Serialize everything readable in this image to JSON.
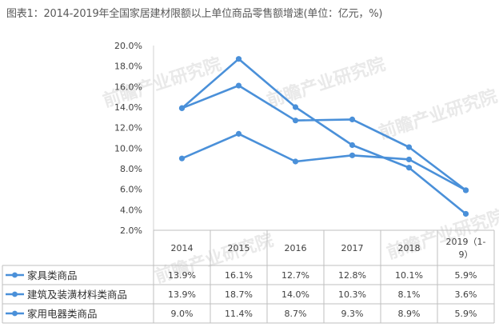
{
  "title": "图表1：2014-2019年全国家居建材限额以上单位商品零售额增速(单位：亿元，%)",
  "watermark": "前瞻产业研究院",
  "chart_data": {
    "type": "line",
    "title": "图表1：2014-2019年全国家居建材限额以上单位商品零售额增速(单位：亿元，%)",
    "categories": [
      "2014",
      "2015",
      "2016",
      "2017",
      "2018",
      "2019（1-9）"
    ],
    "category_lines": [
      [
        "2014"
      ],
      [
        "2015"
      ],
      [
        "2016"
      ],
      [
        "2017"
      ],
      [
        "2018"
      ],
      [
        "2019（1-",
        "9）"
      ]
    ],
    "yticks": [
      "2.0%",
      "4.0%",
      "6.0%",
      "8.0%",
      "10.0%",
      "12.0%",
      "14.0%",
      "16.0%",
      "18.0%",
      "20.0%"
    ],
    "ylim": [
      2,
      20
    ],
    "ystep": 2,
    "color": "#4a90d9",
    "series": [
      {
        "name": "家具类商品",
        "values": [
          13.9,
          16.1,
          12.7,
          12.8,
          10.1,
          5.9
        ],
        "labels": [
          "13.9%",
          "16.1%",
          "12.7%",
          "12.8%",
          "10.1%",
          "5.9%"
        ]
      },
      {
        "name": "建筑及装潢材料类商品",
        "values": [
          13.9,
          18.7,
          14.0,
          10.3,
          8.1,
          3.6
        ],
        "labels": [
          "13.9%",
          "18.7%",
          "14.0%",
          "10.3%",
          "8.1%",
          "3.6%"
        ]
      },
      {
        "name": "家用电器类商品",
        "values": [
          9.0,
          11.4,
          8.7,
          9.3,
          8.9,
          5.9
        ],
        "labels": [
          "9.0%",
          "11.4%",
          "8.7%",
          "9.3%",
          "8.9%",
          "5.9%"
        ]
      }
    ]
  }
}
